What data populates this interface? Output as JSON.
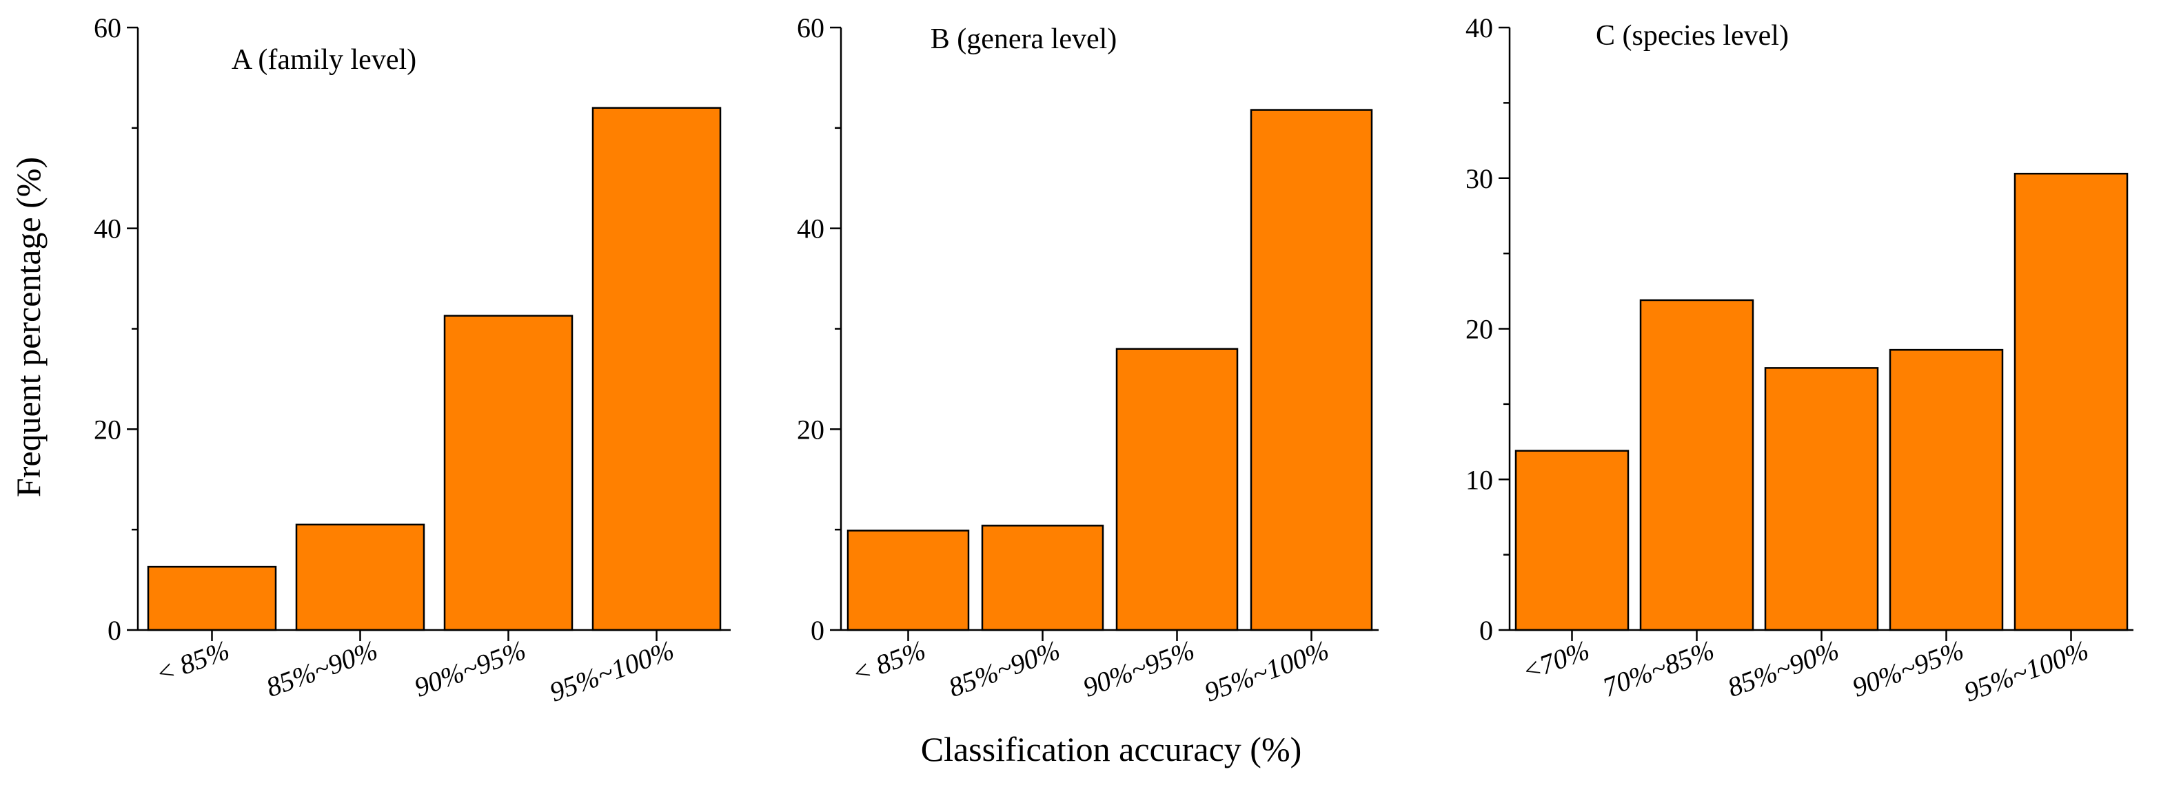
{
  "figure": {
    "ylabel": "Frequent percentage (%)",
    "xlabel": "Classification accuracy (%)",
    "bar_color": "#FF8000",
    "edge_color": "#000000"
  },
  "chart_data": [
    {
      "type": "bar",
      "title": "A (family level)",
      "categories": [
        "< 85%",
        "85%~90%",
        "90%~95%",
        "95%~100%"
      ],
      "values": [
        6.3,
        10.5,
        31.3,
        52.0
      ],
      "ylim": [
        0,
        60
      ],
      "yticks": [
        0,
        20,
        40,
        60
      ],
      "xlabel": "",
      "ylabel": "Frequent percentage (%)"
    },
    {
      "type": "bar",
      "title": "B (genera level)",
      "categories": [
        "< 85%",
        "85%~90%",
        "90%~95%",
        "95%~100%"
      ],
      "values": [
        9.9,
        10.4,
        28.0,
        51.8
      ],
      "ylim": [
        0,
        60
      ],
      "yticks": [
        0,
        20,
        40,
        60
      ],
      "xlabel": "",
      "ylabel": ""
    },
    {
      "type": "bar",
      "title": "C (species level)",
      "categories": [
        "<70%",
        "70%~85%",
        "85%~90%",
        "90%~95%",
        "95%~100%"
      ],
      "values": [
        11.9,
        21.9,
        17.4,
        18.6,
        30.3
      ],
      "ylim": [
        0,
        40
      ],
      "yticks": [
        0,
        10,
        20,
        30,
        40
      ],
      "xlabel": "",
      "ylabel": ""
    }
  ]
}
